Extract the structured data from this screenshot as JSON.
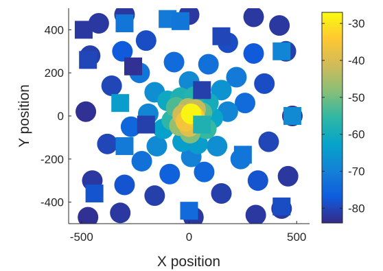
{
  "chart_data": {
    "type": "scatter",
    "xlabel": "X position",
    "ylabel": "Y position",
    "xlim": [
      -560,
      560
    ],
    "ylim": [
      -500,
      500
    ],
    "x_ticks": [
      -500,
      0,
      500
    ],
    "x_tick_labels": [
      "-500",
      "0",
      "500"
    ],
    "y_ticks": [
      -400,
      -200,
      0,
      200,
      400
    ],
    "y_tick_labels": [
      "-400",
      "-200",
      "0",
      "200",
      "400"
    ],
    "grid": false,
    "colormap": "parula",
    "colorbar": {
      "range": [
        -84,
        -27
      ],
      "ticks": [
        -30,
        -40,
        -50,
        -60,
        -70,
        -80
      ],
      "tick_labels": [
        "-30",
        "-40",
        "-50",
        "-60",
        "-70",
        "-80"
      ],
      "placement": "right"
    },
    "series": [
      {
        "marker": "circle",
        "points": [
          [
            10,
            10,
            -28
          ],
          [
            25,
            -5,
            -34
          ],
          [
            -15,
            -25,
            -36
          ],
          [
            0,
            -50,
            -39
          ],
          [
            -30,
            5,
            -41
          ],
          [
            30,
            30,
            -42
          ],
          [
            -5,
            35,
            -44
          ],
          [
            40,
            -30,
            -45
          ],
          [
            -45,
            -45,
            -47
          ],
          [
            5,
            -80,
            -49
          ],
          [
            60,
            15,
            -52
          ],
          [
            -60,
            40,
            -53
          ],
          [
            80,
            -60,
            -55
          ],
          [
            -80,
            -20,
            -56
          ],
          [
            25,
            90,
            -57
          ],
          [
            -40,
            85,
            -58
          ],
          [
            90,
            60,
            -60
          ],
          [
            -100,
            70,
            -61
          ],
          [
            110,
            -10,
            -62
          ],
          [
            -120,
            -60,
            -63
          ],
          [
            40,
            -130,
            -64
          ],
          [
            -30,
            -120,
            -64
          ],
          [
            150,
            120,
            -66
          ],
          [
            -160,
            110,
            -67
          ],
          [
            130,
            -140,
            -67
          ],
          [
            -150,
            -140,
            -68
          ],
          [
            0,
            160,
            -68
          ],
          [
            180,
            20,
            -69
          ],
          [
            -190,
            10,
            -69
          ],
          [
            10,
            -190,
            -70
          ],
          [
            220,
            180,
            -71
          ],
          [
            -230,
            200,
            -72
          ],
          [
            240,
            -200,
            -72
          ],
          [
            -220,
            -210,
            -73
          ],
          [
            90,
            240,
            -73
          ],
          [
            -70,
            250,
            -74
          ],
          [
            260,
            60,
            -74
          ],
          [
            -270,
            -50,
            -75
          ],
          [
            70,
            -260,
            -75
          ],
          [
            -90,
            -270,
            -76
          ],
          [
            300,
            290,
            -77
          ],
          [
            -310,
            300,
            -77
          ],
          [
            320,
            -300,
            -78
          ],
          [
            -300,
            -320,
            -78
          ],
          [
            180,
            340,
            -79
          ],
          [
            -200,
            350,
            -79
          ],
          [
            350,
            150,
            -79
          ],
          [
            -360,
            140,
            -80
          ],
          [
            370,
            -120,
            -80
          ],
          [
            -380,
            -130,
            -80
          ],
          [
            150,
            -360,
            -81
          ],
          [
            -160,
            -370,
            -81
          ],
          [
            420,
            420,
            -82
          ],
          [
            -420,
            430,
            -82
          ],
          [
            430,
            -430,
            -82
          ],
          [
            -470,
            -470,
            -83
          ],
          [
            480,
            0,
            -83
          ],
          [
            -480,
            20,
            -83
          ],
          [
            0,
            470,
            -82
          ],
          [
            20,
            -470,
            -82
          ],
          [
            450,
            300,
            -81
          ],
          [
            -460,
            280,
            -81
          ],
          [
            460,
            -280,
            -82
          ],
          [
            -450,
            -300,
            -82
          ],
          [
            300,
            460,
            -82
          ],
          [
            -300,
            470,
            -82
          ],
          [
            310,
            -460,
            -82
          ],
          [
            -320,
            -450,
            -82
          ]
        ]
      },
      {
        "marker": "square",
        "points": [
          [
            -490,
            400,
            -82
          ],
          [
            -300,
            430,
            -72
          ],
          [
            -100,
            450,
            -71
          ],
          [
            -40,
            440,
            -72
          ],
          [
            150,
            370,
            -80
          ],
          [
            430,
            300,
            -69
          ],
          [
            -470,
            260,
            -80
          ],
          [
            -260,
            230,
            -83
          ],
          [
            60,
            120,
            -81
          ],
          [
            -320,
            60,
            -64
          ],
          [
            480,
            0,
            -68
          ],
          [
            -200,
            -40,
            -81
          ],
          [
            60,
            -40,
            -58
          ],
          [
            -300,
            -140,
            -71
          ],
          [
            250,
            -180,
            -72
          ],
          [
            -440,
            -360,
            -78
          ],
          [
            0,
            -440,
            -74
          ],
          [
            430,
            -420,
            -79
          ]
        ]
      }
    ]
  },
  "colors": {
    "axis": "#262626",
    "background": "#ffffff",
    "colormap_stops": [
      "#352a87",
      "#0f5cdd",
      "#1481d6",
      "#06a4ca",
      "#2eb7a4",
      "#87bf77",
      "#d1bb59",
      "#fec832",
      "#f9fb0e"
    ]
  }
}
